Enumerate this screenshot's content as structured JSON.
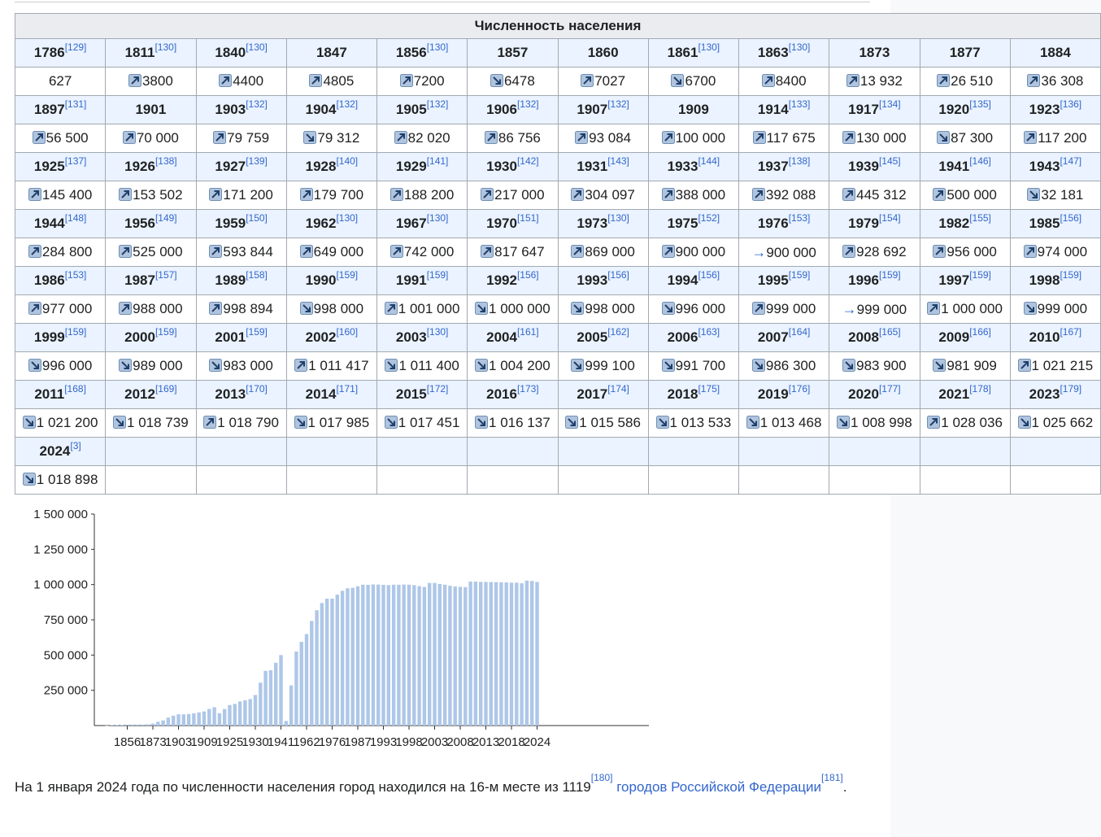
{
  "table": {
    "title": "Численность населения",
    "rows": [
      [
        {
          "year": "1786",
          "ref": "[129]",
          "value": "627",
          "trend": "none"
        },
        {
          "year": "1811",
          "ref": "[130]",
          "value": "3800",
          "trend": "up"
        },
        {
          "year": "1840",
          "ref": "[130]",
          "value": "4400",
          "trend": "up"
        },
        {
          "year": "1847",
          "ref": "",
          "value": "4805",
          "trend": "up"
        },
        {
          "year": "1856",
          "ref": "[130]",
          "value": "7200",
          "trend": "up"
        },
        {
          "year": "1857",
          "ref": "",
          "value": "6478",
          "trend": "down"
        },
        {
          "year": "1860",
          "ref": "",
          "value": "7027",
          "trend": "up"
        },
        {
          "year": "1861",
          "ref": "[130]",
          "value": "6700",
          "trend": "down"
        },
        {
          "year": "1863",
          "ref": "[130]",
          "value": "8400",
          "trend": "up"
        },
        {
          "year": "1873",
          "ref": "",
          "value": "13 932",
          "trend": "up"
        },
        {
          "year": "1877",
          "ref": "",
          "value": "26 510",
          "trend": "up"
        },
        {
          "year": "1884",
          "ref": "",
          "value": "36 308",
          "trend": "up"
        }
      ],
      [
        {
          "year": "1897",
          "ref": "[131]",
          "value": "56 500",
          "trend": "up"
        },
        {
          "year": "1901",
          "ref": "",
          "value": "70 000",
          "trend": "up"
        },
        {
          "year": "1903",
          "ref": "[132]",
          "value": "79 759",
          "trend": "up"
        },
        {
          "year": "1904",
          "ref": "[132]",
          "value": "79 312",
          "trend": "down"
        },
        {
          "year": "1905",
          "ref": "[132]",
          "value": "82 020",
          "trend": "up"
        },
        {
          "year": "1906",
          "ref": "[132]",
          "value": "86 756",
          "trend": "up"
        },
        {
          "year": "1907",
          "ref": "[132]",
          "value": "93 084",
          "trend": "up"
        },
        {
          "year": "1909",
          "ref": "",
          "value": "100 000",
          "trend": "up"
        },
        {
          "year": "1914",
          "ref": "[133]",
          "value": "117 675",
          "trend": "up"
        },
        {
          "year": "1917",
          "ref": "[134]",
          "value": "130 000",
          "trend": "up"
        },
        {
          "year": "1920",
          "ref": "[135]",
          "value": "87 300",
          "trend": "down"
        },
        {
          "year": "1923",
          "ref": "[136]",
          "value": "117 200",
          "trend": "up"
        }
      ],
      [
        {
          "year": "1925",
          "ref": "[137]",
          "value": "145 400",
          "trend": "up"
        },
        {
          "year": "1926",
          "ref": "[138]",
          "value": "153 502",
          "trend": "up"
        },
        {
          "year": "1927",
          "ref": "[139]",
          "value": "171 200",
          "trend": "up"
        },
        {
          "year": "1928",
          "ref": "[140]",
          "value": "179 700",
          "trend": "up"
        },
        {
          "year": "1929",
          "ref": "[141]",
          "value": "188 200",
          "trend": "up"
        },
        {
          "year": "1930",
          "ref": "[142]",
          "value": "217 000",
          "trend": "up"
        },
        {
          "year": "1931",
          "ref": "[143]",
          "value": "304 097",
          "trend": "up"
        },
        {
          "year": "1933",
          "ref": "[144]",
          "value": "388 000",
          "trend": "up"
        },
        {
          "year": "1937",
          "ref": "[138]",
          "value": "392 088",
          "trend": "up"
        },
        {
          "year": "1939",
          "ref": "[145]",
          "value": "445 312",
          "trend": "up"
        },
        {
          "year": "1941",
          "ref": "[146]",
          "value": "500 000",
          "trend": "up"
        },
        {
          "year": "1943",
          "ref": "[147]",
          "value": "32 181",
          "trend": "down"
        }
      ],
      [
        {
          "year": "1944",
          "ref": "[148]",
          "value": "284 800",
          "trend": "up"
        },
        {
          "year": "1956",
          "ref": "[149]",
          "value": "525 000",
          "trend": "up"
        },
        {
          "year": "1959",
          "ref": "[150]",
          "value": "593 844",
          "trend": "up"
        },
        {
          "year": "1962",
          "ref": "[130]",
          "value": "649 000",
          "trend": "up"
        },
        {
          "year": "1967",
          "ref": "[130]",
          "value": "742 000",
          "trend": "up"
        },
        {
          "year": "1970",
          "ref": "[151]",
          "value": "817 647",
          "trend": "up"
        },
        {
          "year": "1973",
          "ref": "[130]",
          "value": "869 000",
          "trend": "up"
        },
        {
          "year": "1975",
          "ref": "[152]",
          "value": "900 000",
          "trend": "up"
        },
        {
          "year": "1976",
          "ref": "[153]",
          "value": "900 000",
          "trend": "same"
        },
        {
          "year": "1979",
          "ref": "[154]",
          "value": "928 692",
          "trend": "up"
        },
        {
          "year": "1982",
          "ref": "[155]",
          "value": "956 000",
          "trend": "up"
        },
        {
          "year": "1985",
          "ref": "[156]",
          "value": "974 000",
          "trend": "up"
        }
      ],
      [
        {
          "year": "1986",
          "ref": "[153]",
          "value": "977 000",
          "trend": "up"
        },
        {
          "year": "1987",
          "ref": "[157]",
          "value": "988 000",
          "trend": "up"
        },
        {
          "year": "1989",
          "ref": "[158]",
          "value": "998 894",
          "trend": "up"
        },
        {
          "year": "1990",
          "ref": "[159]",
          "value": "998 000",
          "trend": "down"
        },
        {
          "year": "1991",
          "ref": "[159]",
          "value": "1 001 000",
          "trend": "up"
        },
        {
          "year": "1992",
          "ref": "[156]",
          "value": "1 000 000",
          "trend": "down"
        },
        {
          "year": "1993",
          "ref": "[156]",
          "value": "998 000",
          "trend": "down"
        },
        {
          "year": "1994",
          "ref": "[156]",
          "value": "996 000",
          "trend": "down"
        },
        {
          "year": "1995",
          "ref": "[159]",
          "value": "999 000",
          "trend": "up"
        },
        {
          "year": "1996",
          "ref": "[159]",
          "value": "999 000",
          "trend": "same"
        },
        {
          "year": "1997",
          "ref": "[159]",
          "value": "1 000 000",
          "trend": "up"
        },
        {
          "year": "1998",
          "ref": "[159]",
          "value": "999 000",
          "trend": "down"
        }
      ],
      [
        {
          "year": "1999",
          "ref": "[159]",
          "value": "996 000",
          "trend": "down"
        },
        {
          "year": "2000",
          "ref": "[159]",
          "value": "989 000",
          "trend": "down"
        },
        {
          "year": "2001",
          "ref": "[159]",
          "value": "983 000",
          "trend": "down"
        },
        {
          "year": "2002",
          "ref": "[160]",
          "value": "1 011 417",
          "trend": "up"
        },
        {
          "year": "2003",
          "ref": "[130]",
          "value": "1 011 400",
          "trend": "down"
        },
        {
          "year": "2004",
          "ref": "[161]",
          "value": "1 004 200",
          "trend": "down"
        },
        {
          "year": "2005",
          "ref": "[162]",
          "value": "999 100",
          "trend": "down"
        },
        {
          "year": "2006",
          "ref": "[163]",
          "value": "991 700",
          "trend": "down"
        },
        {
          "year": "2007",
          "ref": "[164]",
          "value": "986 300",
          "trend": "down"
        },
        {
          "year": "2008",
          "ref": "[165]",
          "value": "983 900",
          "trend": "down"
        },
        {
          "year": "2009",
          "ref": "[166]",
          "value": "981 909",
          "trend": "down"
        },
        {
          "year": "2010",
          "ref": "[167]",
          "value": "1 021 215",
          "trend": "up"
        }
      ],
      [
        {
          "year": "2011",
          "ref": "[168]",
          "value": "1 021 200",
          "trend": "down"
        },
        {
          "year": "2012",
          "ref": "[169]",
          "value": "1 018 739",
          "trend": "down"
        },
        {
          "year": "2013",
          "ref": "[170]",
          "value": "1 018 790",
          "trend": "up"
        },
        {
          "year": "2014",
          "ref": "[171]",
          "value": "1 017 985",
          "trend": "down"
        },
        {
          "year": "2015",
          "ref": "[172]",
          "value": "1 017 451",
          "trend": "down"
        },
        {
          "year": "2016",
          "ref": "[173]",
          "value": "1 016 137",
          "trend": "down"
        },
        {
          "year": "2017",
          "ref": "[174]",
          "value": "1 015 586",
          "trend": "down"
        },
        {
          "year": "2018",
          "ref": "[175]",
          "value": "1 013 533",
          "trend": "down"
        },
        {
          "year": "2019",
          "ref": "[176]",
          "value": "1 013 468",
          "trend": "down"
        },
        {
          "year": "2020",
          "ref": "[177]",
          "value": "1 008 998",
          "trend": "down"
        },
        {
          "year": "2021",
          "ref": "[178]",
          "value": "1 028 036",
          "trend": "up"
        },
        {
          "year": "2023",
          "ref": "[179]",
          "value": "1 025 662",
          "trend": "down"
        }
      ],
      [
        {
          "year": "2024",
          "ref": "[3]",
          "value": "1 018 898",
          "trend": "down"
        }
      ]
    ]
  },
  "chart_data": {
    "type": "bar",
    "ylim": [
      0,
      1500000
    ],
    "ytick_labels": [
      "1 500 000",
      "1 250 000",
      "1 000 000",
      "750 000",
      "500 000",
      "250 000"
    ],
    "yticks": [
      1500000,
      1250000,
      1000000,
      750000,
      500000,
      250000
    ],
    "xtick_labels": [
      "1856",
      "1873",
      "1903",
      "1909",
      "1925",
      "1930",
      "1941",
      "1962",
      "1976",
      "1987",
      "1993",
      "1998",
      "2003",
      "2008",
      "2013",
      "2018",
      "2024"
    ],
    "categories": [
      "1786",
      "1811",
      "1840",
      "1847",
      "1856",
      "1857",
      "1860",
      "1861",
      "1863",
      "1873",
      "1877",
      "1884",
      "1897",
      "1901",
      "1903",
      "1904",
      "1905",
      "1906",
      "1907",
      "1909",
      "1914",
      "1917",
      "1920",
      "1923",
      "1925",
      "1926",
      "1927",
      "1928",
      "1929",
      "1930",
      "1931",
      "1933",
      "1937",
      "1939",
      "1941",
      "1943",
      "1944",
      "1956",
      "1959",
      "1962",
      "1967",
      "1970",
      "1973",
      "1975",
      "1976",
      "1979",
      "1982",
      "1985",
      "1986",
      "1987",
      "1989",
      "1990",
      "1991",
      "1992",
      "1993",
      "1994",
      "1995",
      "1996",
      "1997",
      "1998",
      "1999",
      "2000",
      "2001",
      "2002",
      "2003",
      "2004",
      "2005",
      "2006",
      "2007",
      "2008",
      "2009",
      "2010",
      "2011",
      "2012",
      "2013",
      "2014",
      "2015",
      "2016",
      "2017",
      "2018",
      "2019",
      "2020",
      "2021",
      "2023",
      "2024"
    ],
    "values": [
      627,
      3800,
      4400,
      4805,
      7200,
      6478,
      7027,
      6700,
      8400,
      13932,
      26510,
      36308,
      56500,
      70000,
      79759,
      79312,
      82020,
      86756,
      93084,
      100000,
      117675,
      130000,
      87300,
      117200,
      145400,
      153502,
      171200,
      179700,
      188200,
      217000,
      304097,
      388000,
      392088,
      445312,
      500000,
      32181,
      284800,
      525000,
      593844,
      649000,
      742000,
      817647,
      869000,
      900000,
      900000,
      928692,
      956000,
      974000,
      977000,
      988000,
      998894,
      998000,
      1001000,
      1000000,
      998000,
      996000,
      999000,
      999000,
      1000000,
      999000,
      996000,
      989000,
      983000,
      1011417,
      1011400,
      1004200,
      999100,
      991700,
      986300,
      983900,
      981909,
      1021215,
      1021200,
      1018739,
      1018790,
      1017985,
      1017451,
      1016137,
      1015586,
      1013533,
      1013468,
      1008998,
      1028036,
      1025662,
      1018898
    ],
    "bar_color": "#aec7e8"
  },
  "paragraph": {
    "text1": "На 1 января 2024 года по численности населения город находился на 16-м месте из 1119",
    "ref1": "[180]",
    "link": "городов Российской Федерации",
    "ref2": "[181]",
    "end": "."
  },
  "colors": {
    "up": "#36c",
    "down": "#36c",
    "same": "#36c"
  }
}
